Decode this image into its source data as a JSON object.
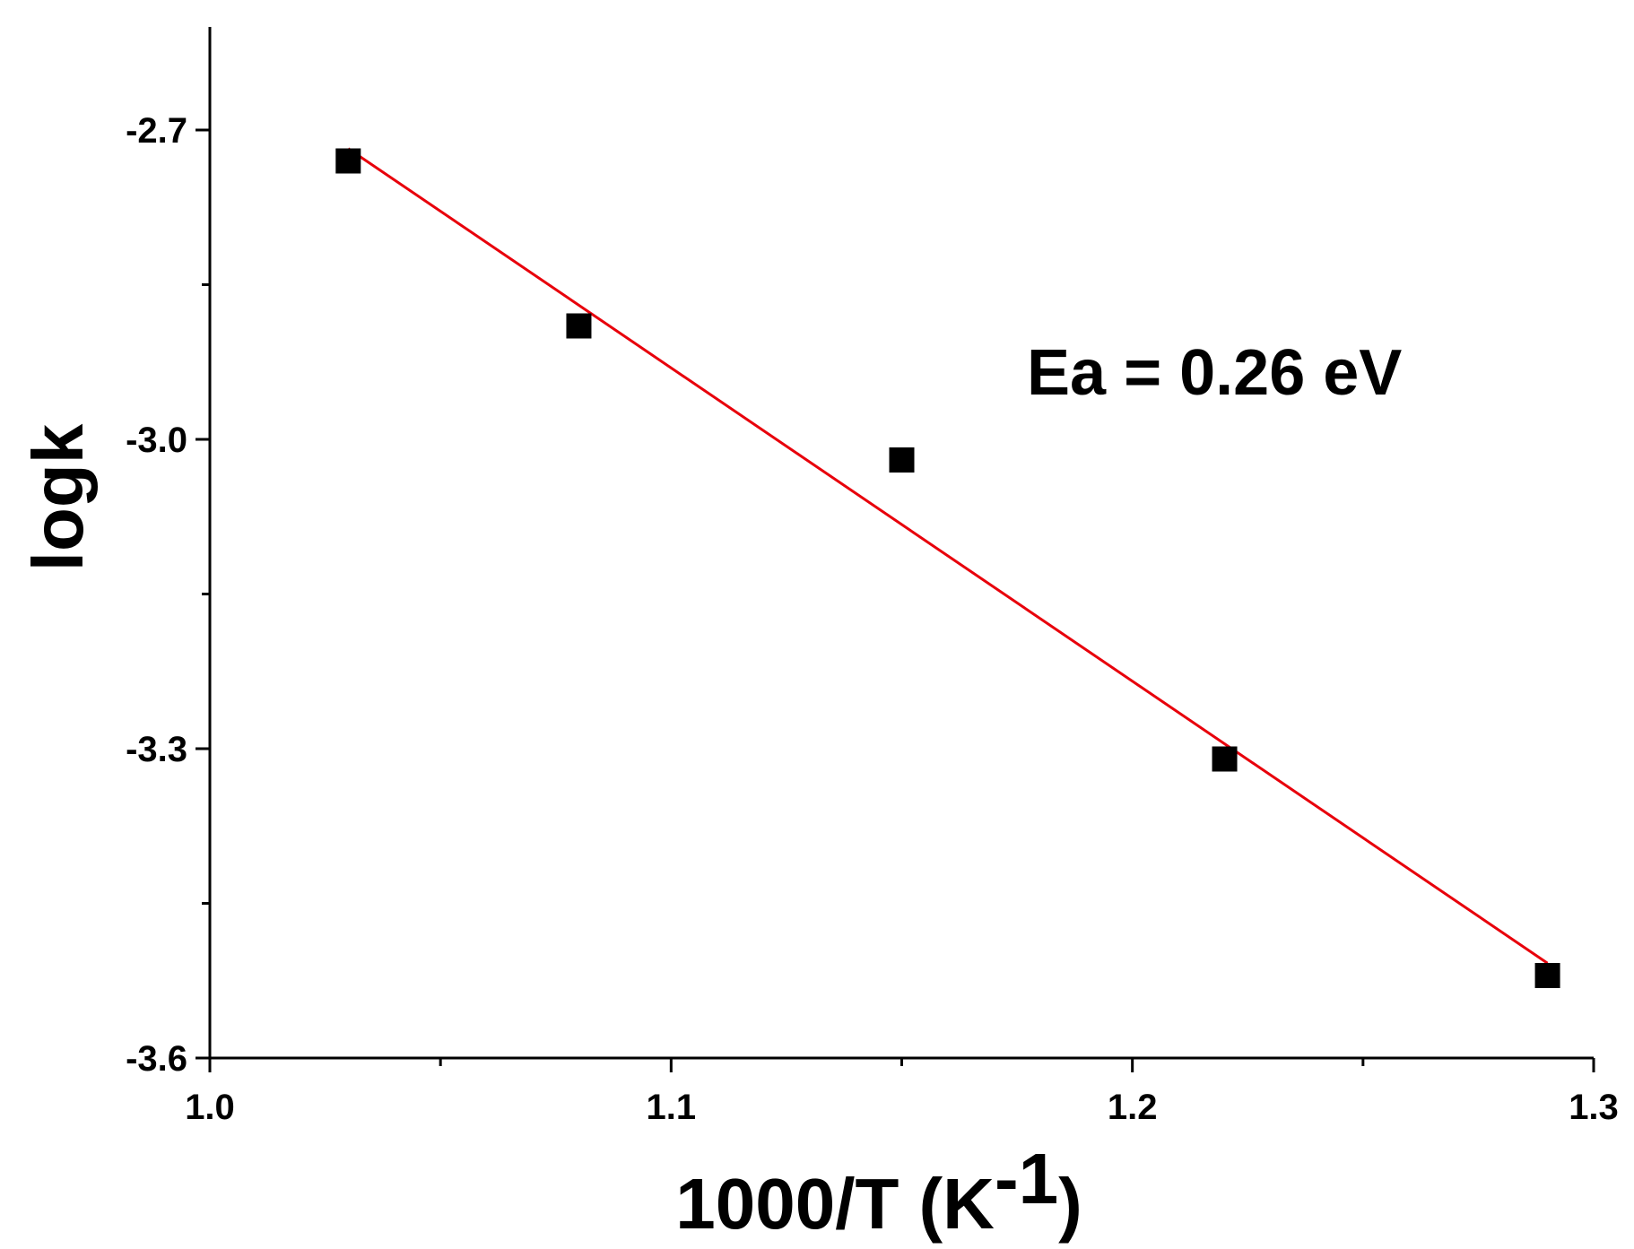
{
  "chart_data": {
    "type": "scatter",
    "title": "",
    "xlabel": "1000/T (K",
    "xlabel_sup": "-1",
    "xlabel_close": ")",
    "ylabel": "logk",
    "xlim": [
      1.0,
      1.3
    ],
    "ylim": [
      -3.6,
      -2.6
    ],
    "x_ticks": [
      1.0,
      1.1,
      1.2,
      1.3
    ],
    "x_tick_labels": [
      "1.0",
      "1.1",
      "1.2",
      "1.3"
    ],
    "x_minor_ticks": [
      1.05,
      1.15,
      1.25
    ],
    "y_ticks": [
      -2.7,
      -3.0,
      -3.3,
      -3.6
    ],
    "y_tick_labels": [
      "-2.7",
      "-3.0",
      "-3.3",
      "-3.6"
    ],
    "y_minor_ticks": [
      -2.85,
      -3.15,
      -3.45
    ],
    "grid": false,
    "series": [
      {
        "marker": "square",
        "color": "#000000",
        "x": [
          1.03,
          1.08,
          1.15,
          1.22,
          1.29
        ],
        "y": [
          -2.73,
          -2.89,
          -3.02,
          -3.31,
          -3.52
        ]
      }
    ],
    "fit_line": {
      "color": "#e8000b",
      "x": [
        1.03,
        1.29
      ],
      "y": [
        -2.718,
        -3.508
      ]
    },
    "annotations": [
      {
        "text": "Ea = 0.26 eV"
      }
    ]
  }
}
